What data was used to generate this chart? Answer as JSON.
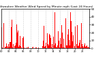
{
  "title": "Milwaukee Weather Wind Speed by Minute mph (Last 24 Hours)",
  "bar_color": "#ff0000",
  "background_color": "#ffffff",
  "plot_bg_color": "#ffffff",
  "ylim": [
    0,
    50
  ],
  "yticks": [
    0,
    10,
    20,
    30,
    40,
    50
  ],
  "n_bars": 288,
  "seed": 42,
  "grid_color": "#888888",
  "axis_color": "#000000",
  "title_fontsize": 3.2,
  "tick_label_fontsize": 3.0,
  "xtick_fontsize": 2.5
}
